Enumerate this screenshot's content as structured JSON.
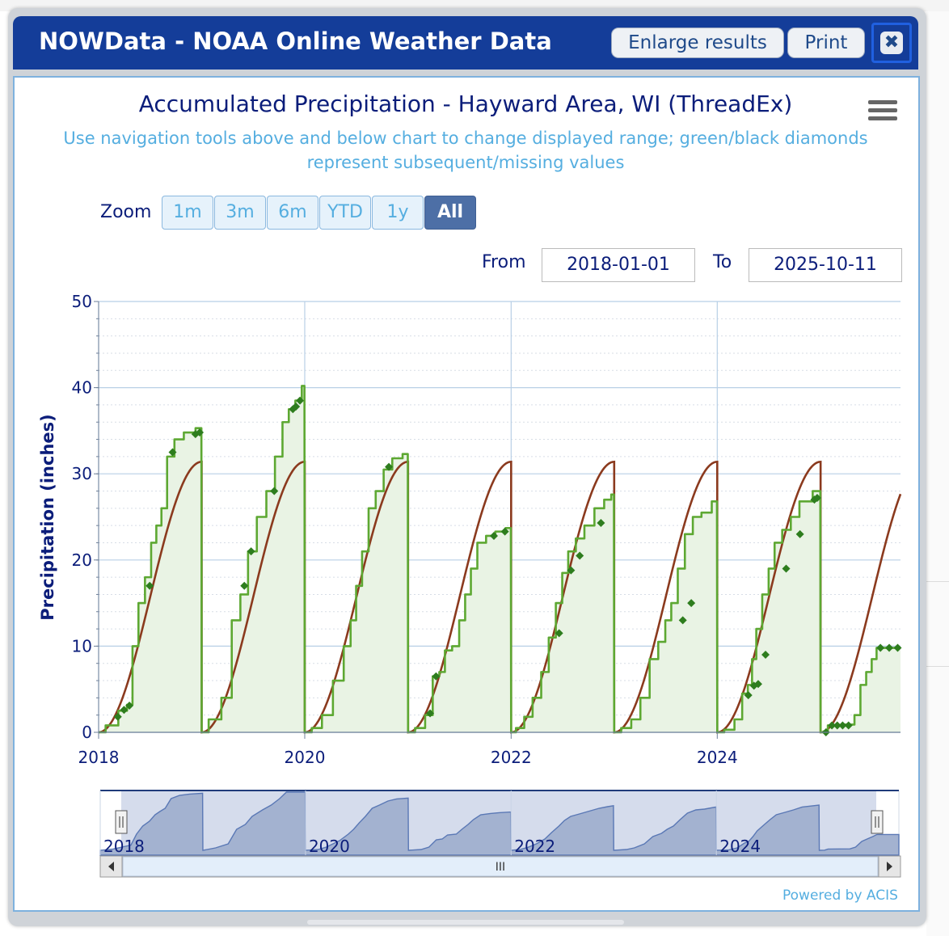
{
  "window": {
    "title": "NOWData - NOAA Online Weather Data",
    "enlarge_label": "Enlarge results",
    "print_label": "Print",
    "close_glyph": "✖"
  },
  "controls": {
    "zoom_label": "Zoom",
    "zoom_buttons": [
      "1m",
      "3m",
      "6m",
      "YTD",
      "1y",
      "All"
    ],
    "zoom_selected": "All",
    "from_label": "From",
    "from_value": "2018-01-01",
    "to_label": "To",
    "to_value": "2025-10-11"
  },
  "footer": {
    "powered_by": "Powered by ACIS"
  },
  "colors": {
    "title_bar": "#143d99",
    "observed_line": "#5da832",
    "normal_line": "#8b3a1e",
    "marker": "#2e7d1e",
    "fill": "#e9f3e4"
  },
  "icons": {
    "menu": "hamburger-menu-icon",
    "close": "close-icon",
    "scroll_left": "left-arrow-icon",
    "scroll_right": "right-arrow-icon"
  },
  "chart_data": {
    "type": "line",
    "title": "Accumulated Precipitation - Hayward Area, WI (ThreadEx)",
    "subtitle": "Use navigation tools above and below chart to change displayed range; green/black diamonds represent subsequent/missing values",
    "ylabel": "Precipitation (inches)",
    "xlabel": "",
    "ylim": [
      0,
      50
    ],
    "yticks": [
      0,
      10,
      20,
      30,
      40,
      50
    ],
    "xlim": [
      "2018-01-01",
      "2025-10-11"
    ],
    "xticks": [
      "2018",
      "2020",
      "2022",
      "2024"
    ],
    "navigator_xticks": [
      "2018",
      "2020",
      "2022",
      "2024"
    ],
    "grid": true,
    "series": [
      {
        "name": "",
        "kind": "observed",
        "points": [
          [
            "2018-01-01",
            0
          ],
          [
            "2018-02-15",
            0.8
          ],
          [
            "2018-04-01",
            2.5
          ],
          [
            "2018-04-20",
            3.2
          ],
          [
            "2018-05-10",
            10
          ],
          [
            "2018-06-01",
            15
          ],
          [
            "2018-06-25",
            18
          ],
          [
            "2018-07-15",
            22
          ],
          [
            "2018-08-01",
            24
          ],
          [
            "2018-08-20",
            26
          ],
          [
            "2018-09-10",
            32
          ],
          [
            "2018-10-10",
            34
          ],
          [
            "2018-11-15",
            34.8
          ],
          [
            "2018-12-31",
            35.3
          ],
          [
            "2019-01-01",
            0
          ],
          [
            "2019-02-15",
            1.5
          ],
          [
            "2019-04-01",
            4
          ],
          [
            "2019-05-01",
            13
          ],
          [
            "2019-06-01",
            16
          ],
          [
            "2019-06-25",
            21
          ],
          [
            "2019-08-01",
            25
          ],
          [
            "2019-09-01",
            28
          ],
          [
            "2019-10-01",
            32
          ],
          [
            "2019-10-25",
            36
          ],
          [
            "2019-11-15",
            37.5
          ],
          [
            "2019-12-10",
            38.5
          ],
          [
            "2019-12-31",
            40.2
          ],
          [
            "2020-01-01",
            0
          ],
          [
            "2020-02-15",
            0.5
          ],
          [
            "2020-03-15",
            2
          ],
          [
            "2020-05-01",
            6
          ],
          [
            "2020-06-01",
            10
          ],
          [
            "2020-06-20",
            13
          ],
          [
            "2020-07-10",
            17
          ],
          [
            "2020-08-01",
            21
          ],
          [
            "2020-08-25",
            26
          ],
          [
            "2020-09-20",
            28
          ],
          [
            "2020-10-20",
            30.5
          ],
          [
            "2020-11-20",
            31.8
          ],
          [
            "2020-12-31",
            32.3
          ],
          [
            "2021-01-01",
            0
          ],
          [
            "2021-02-15",
            0.5
          ],
          [
            "2021-03-15",
            2
          ],
          [
            "2021-04-10",
            6.5
          ],
          [
            "2021-05-01",
            7
          ],
          [
            "2021-05-20",
            9.5
          ],
          [
            "2021-06-20",
            10
          ],
          [
            "2021-07-10",
            13
          ],
          [
            "2021-08-01",
            16
          ],
          [
            "2021-08-20",
            19
          ],
          [
            "2021-09-15",
            22
          ],
          [
            "2021-10-20",
            22.8
          ],
          [
            "2021-11-20",
            23.3
          ],
          [
            "2021-12-31",
            23.7
          ],
          [
            "2022-01-01",
            0
          ],
          [
            "2022-02-01",
            0.5
          ],
          [
            "2022-03-01",
            1.8
          ],
          [
            "2022-04-01",
            4
          ],
          [
            "2022-05-01",
            7
          ],
          [
            "2022-05-25",
            11
          ],
          [
            "2022-06-20",
            15
          ],
          [
            "2022-07-10",
            18.5
          ],
          [
            "2022-08-01",
            21
          ],
          [
            "2022-09-01",
            22.5
          ],
          [
            "2022-10-01",
            24
          ],
          [
            "2022-11-10",
            26
          ],
          [
            "2022-12-10",
            27
          ],
          [
            "2022-12-31",
            27.6
          ],
          [
            "2023-01-01",
            0
          ],
          [
            "2023-02-15",
            0.5
          ],
          [
            "2023-03-15",
            1.5
          ],
          [
            "2023-04-20",
            4
          ],
          [
            "2023-05-20",
            8.5
          ],
          [
            "2023-06-20",
            10.5
          ],
          [
            "2023-07-10",
            13
          ],
          [
            "2023-08-01",
            15
          ],
          [
            "2023-08-25",
            19
          ],
          [
            "2023-09-20",
            23
          ],
          [
            "2023-10-20",
            25
          ],
          [
            "2023-11-20",
            25.5
          ],
          [
            "2023-12-31",
            26.8
          ],
          [
            "2024-01-01",
            0
          ],
          [
            "2024-02-15",
            0.3
          ],
          [
            "2024-03-15",
            1.5
          ],
          [
            "2024-04-10",
            4.5
          ],
          [
            "2024-04-25",
            5.5
          ],
          [
            "2024-05-10",
            8.5
          ],
          [
            "2024-05-25",
            12
          ],
          [
            "2024-06-20",
            16
          ],
          [
            "2024-07-10",
            19
          ],
          [
            "2024-08-01",
            22
          ],
          [
            "2024-09-01",
            23.5
          ],
          [
            "2024-10-01",
            25
          ],
          [
            "2024-11-01",
            26.8
          ],
          [
            "2024-12-31",
            28
          ],
          [
            "2025-01-01",
            0
          ],
          [
            "2025-01-20",
            0.1
          ],
          [
            "2025-02-01",
            0.8
          ],
          [
            "2025-04-20",
            0.9
          ],
          [
            "2025-05-10",
            2
          ],
          [
            "2025-06-01",
            5.5
          ],
          [
            "2025-06-20",
            7
          ],
          [
            "2025-07-10",
            8.5
          ],
          [
            "2025-07-25",
            9.8
          ],
          [
            "2025-10-11",
            9.8
          ]
        ]
      },
      {
        "name": "",
        "kind": "normal",
        "annual_total": 31.4,
        "points": [
          [
            "2025-01-01",
            0
          ],
          [
            "2025-02-01",
            1.2
          ],
          [
            "2025-03-01",
            2.8
          ],
          [
            "2025-04-01",
            5
          ],
          [
            "2025-05-01",
            8.5
          ],
          [
            "2025-06-01",
            13
          ],
          [
            "2025-07-01",
            17.5
          ],
          [
            "2025-08-01",
            21.5
          ],
          [
            "2025-09-01",
            24.5
          ],
          [
            "2025-10-11",
            27
          ]
        ]
      }
    ],
    "markers": [
      [
        "2018-03-10",
        1.8
      ],
      [
        "2018-04-01",
        2.6
      ],
      [
        "2018-04-20",
        3.1
      ],
      [
        "2018-07-01",
        17
      ],
      [
        "2018-09-20",
        32.5
      ],
      [
        "2018-12-10",
        34.6
      ],
      [
        "2018-12-25",
        34.8
      ],
      [
        "2019-06-01",
        17
      ],
      [
        "2019-06-25",
        21
      ],
      [
        "2019-09-15",
        28
      ],
      [
        "2019-11-20",
        37.5
      ],
      [
        "2019-12-01",
        37.8
      ],
      [
        "2019-12-15",
        38.5
      ],
      [
        "2020-10-25",
        30.8
      ],
      [
        "2021-03-20",
        2.2
      ],
      [
        "2021-04-10",
        6.5
      ],
      [
        "2021-11-01",
        22.8
      ],
      [
        "2021-12-10",
        23.3
      ],
      [
        "2022-06-20",
        11.5
      ],
      [
        "2022-08-01",
        18.8
      ],
      [
        "2022-09-01",
        20.5
      ],
      [
        "2022-11-15",
        24.3
      ],
      [
        "2023-09-01",
        13
      ],
      [
        "2023-10-01",
        15
      ],
      [
        "2024-04-20",
        4.3
      ],
      [
        "2024-05-10",
        5.4
      ],
      [
        "2024-05-25",
        5.6
      ],
      [
        "2024-06-20",
        9
      ],
      [
        "2024-09-01",
        19
      ],
      [
        "2024-10-20",
        23
      ],
      [
        "2024-12-10",
        27
      ],
      [
        "2024-12-20",
        27.2
      ],
      [
        "2025-01-20",
        0
      ],
      [
        "2025-02-10",
        0.8
      ],
      [
        "2025-03-01",
        0.8
      ],
      [
        "2025-03-20",
        0.8
      ],
      [
        "2025-04-10",
        0.8
      ],
      [
        "2025-08-01",
        9.8
      ],
      [
        "2025-09-01",
        9.8
      ],
      [
        "2025-10-01",
        9.8
      ]
    ]
  }
}
